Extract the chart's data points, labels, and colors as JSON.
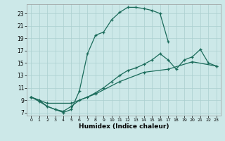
{
  "xlabel": "Humidex (Indice chaleur)",
  "bg_color": "#cce8e8",
  "line_color": "#1a6b5a",
  "grid_color": "#aacfcf",
  "xlim": [
    -0.5,
    23.5
  ],
  "ylim": [
    6.5,
    24.5
  ],
  "xticks": [
    0,
    1,
    2,
    3,
    4,
    5,
    6,
    7,
    8,
    9,
    10,
    11,
    12,
    13,
    14,
    15,
    16,
    17,
    18,
    19,
    20,
    21,
    22,
    23
  ],
  "yticks": [
    7,
    9,
    11,
    13,
    15,
    17,
    19,
    21,
    23
  ],
  "curve1_x": [
    0,
    1,
    2,
    3,
    4,
    5,
    6,
    7,
    8,
    9,
    10,
    11,
    12,
    13,
    14,
    15,
    16,
    17
  ],
  "curve1_y": [
    9.5,
    9.0,
    8.0,
    7.5,
    7.0,
    7.5,
    10.5,
    16.5,
    19.5,
    20.0,
    22.0,
    23.2,
    24.0,
    24.0,
    23.8,
    23.5,
    23.0,
    18.5
  ],
  "curve2_x": [
    0,
    1,
    2,
    3,
    4,
    5,
    6,
    7,
    8,
    9,
    10,
    11,
    12,
    13,
    14,
    15,
    16,
    17,
    18,
    19,
    20,
    21,
    22,
    23
  ],
  "curve2_y": [
    9.5,
    8.8,
    8.0,
    7.5,
    7.2,
    8.0,
    9.0,
    9.5,
    10.2,
    11.0,
    12.0,
    13.0,
    13.8,
    14.2,
    14.8,
    15.5,
    16.5,
    15.5,
    14.0,
    15.5,
    16.0,
    17.2,
    15.0,
    14.5
  ],
  "curve3_x": [
    0,
    2,
    5,
    8,
    11,
    14,
    17,
    20,
    23
  ],
  "curve3_y": [
    9.5,
    8.5,
    8.5,
    10.0,
    12.0,
    13.5,
    14.0,
    15.2,
    14.5
  ]
}
